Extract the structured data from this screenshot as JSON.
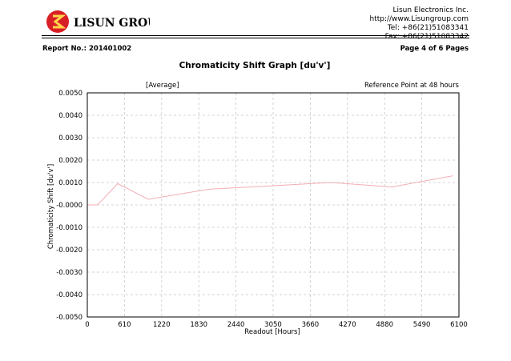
{
  "header": {
    "logo_text": "LISUN GROUP",
    "company_name": "Lisun Electronics Inc.",
    "website": "http://www.Lisungroup.com",
    "tel": "Tel: +86(21)51083341",
    "fax": "Fax: +86(21)51083342"
  },
  "report": {
    "report_label": "Report No.: 201401002",
    "page_label": "Page 4 of 6 Pages"
  },
  "colors": {
    "line": "#f4aeb4",
    "grid": "#c8c8c8",
    "axis": "#000000"
  },
  "chart_data": {
    "type": "line",
    "title": "Chromaticity Shift Graph [du'v']",
    "subtitle_left": "[Average]",
    "subtitle_right": "Reference Point at 48 hours",
    "xlabel": "Readout [Hours]",
    "ylabel": "Chromaticity Shift [du'v']",
    "xlim": [
      0,
      6100
    ],
    "ylim": [
      -0.005,
      0.005
    ],
    "x_ticks": [
      0,
      610,
      1220,
      1830,
      2440,
      3050,
      3660,
      4270,
      4880,
      5490,
      6100
    ],
    "x_tick_labels": [
      "0",
      "610",
      "1220",
      "1830",
      "2440",
      "3050",
      "3660",
      "4270",
      "4880",
      "5490",
      "6100"
    ],
    "y_ticks": [
      0.005,
      0.004,
      0.003,
      0.002,
      0.001,
      0,
      -0.001,
      -0.002,
      -0.003,
      -0.004,
      -0.005
    ],
    "y_tick_labels": [
      "0.0050",
      "0.0040",
      "0.0030",
      "0.0020",
      "0.0010",
      "-0.0000",
      "-0.0010",
      "-0.0020",
      "-0.0030",
      "-0.0040",
      "-0.0050"
    ],
    "grid": true,
    "series": [
      {
        "name": "Average",
        "x": [
          0,
          168,
          500,
          1000,
          2000,
          3000,
          4000,
          5000,
          6000
        ],
        "y": [
          0,
          0,
          0.00095,
          0.00025,
          0.0007,
          0.00085,
          0.001,
          0.0008,
          0.0013
        ]
      }
    ]
  }
}
